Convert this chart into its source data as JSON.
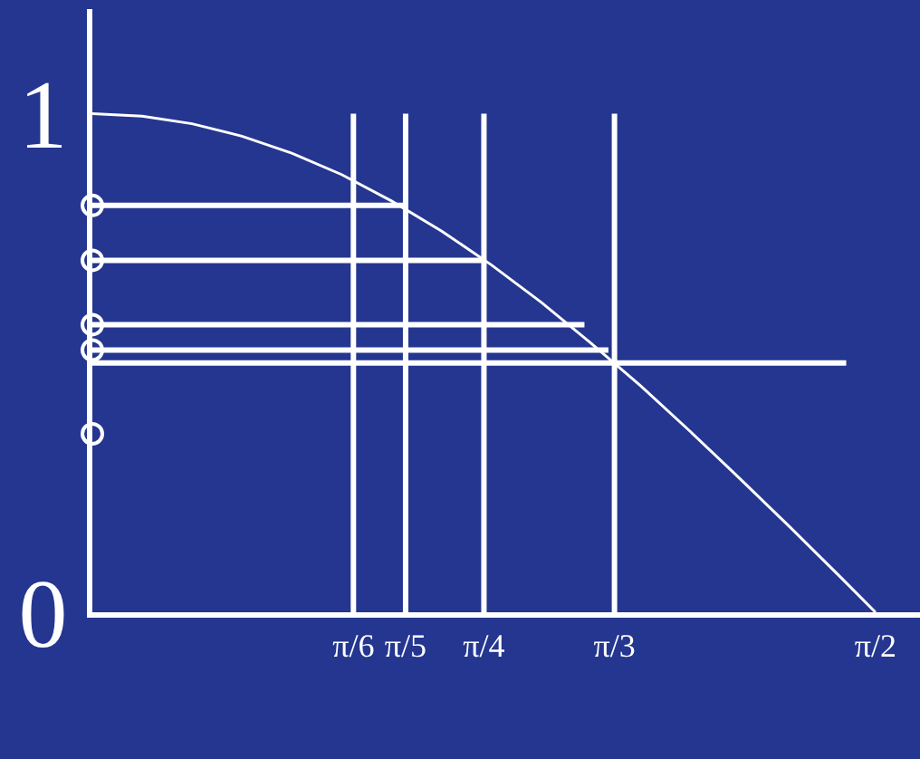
{
  "chart_data": {
    "type": "line",
    "xlim": [
      0,
      1.66
    ],
    "ylim": [
      0,
      1.21
    ],
    "xticks": [
      {
        "value": 0.5236,
        "label": "π/6"
      },
      {
        "value": 0.6283,
        "label": "π/5"
      },
      {
        "value": 0.7854,
        "label": "π/4"
      },
      {
        "value": 1.0472,
        "label": "π/3"
      },
      {
        "value": 1.5708,
        "label": "π/2"
      }
    ],
    "yticks": [
      0,
      1
    ],
    "grid": false,
    "series": [
      {
        "color": "#ffffff",
        "marker": "none",
        "x": [
          0,
          0.1,
          0.2,
          0.3,
          0.4,
          0.5,
          0.6,
          0.7,
          0.8,
          0.9,
          1.0,
          1.1,
          1.2,
          1.3,
          1.4,
          1.5,
          1.5708
        ],
        "values": [
          1,
          0.995,
          0.98,
          0.955,
          0.921,
          0.878,
          0.825,
          0.765,
          0.697,
          0.622,
          0.54,
          0.454,
          0.362,
          0.267,
          0.17,
          0.071,
          0
        ]
      },
      {
        "type": "line",
        "color": "#ffffff",
        "marker": "none",
        "x": [
          0.5236,
          0.5236
        ],
        "values": [
          0,
          1
        ]
      },
      {
        "type": "line",
        "color": "#ffffff",
        "marker": "none",
        "x": [
          0.6283,
          0.6283
        ],
        "values": [
          0,
          1
        ]
      },
      {
        "type": "line",
        "color": "#ffffff",
        "marker": "none",
        "x": [
          0.7854,
          0.7854
        ],
        "values": [
          0,
          1
        ]
      },
      {
        "type": "line",
        "color": "#ffffff",
        "marker": "none",
        "x": [
          1.0472,
          1.0472
        ],
        "values": [
          0,
          1
        ]
      },
      {
        "type": "line",
        "color": "#ffffff",
        "marker": "none",
        "x": [
          0,
          0.628
        ],
        "values": [
          0.816,
          0.816
        ]
      },
      {
        "type": "line",
        "color": "#ffffff",
        "marker": "none",
        "x": [
          0,
          0.785
        ],
        "values": [
          0.706,
          0.706
        ]
      },
      {
        "type": "line",
        "color": "#ffffff",
        "marker": "none",
        "x": [
          0,
          0.987
        ],
        "values": [
          0.577,
          0.577
        ]
      },
      {
        "type": "line",
        "color": "#ffffff",
        "marker": "none",
        "x": [
          0,
          1.035
        ],
        "values": [
          0.526,
          0.526
        ]
      },
      {
        "type": "line",
        "color": "#ffffff",
        "marker": "none",
        "x": [
          0,
          1.512
        ],
        "values": [
          0.5,
          0.5
        ]
      },
      {
        "type": "scatter",
        "color": "#ffffff",
        "marker": "circle",
        "x": [
          0,
          0,
          0,
          0,
          0
        ],
        "values": [
          0.816,
          0.706,
          0.577,
          0.526,
          0.358
        ]
      }
    ]
  }
}
